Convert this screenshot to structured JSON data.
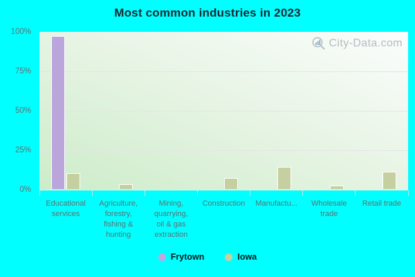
{
  "title": "Most common industries in 2023",
  "watermark": {
    "text": "City-Data.com"
  },
  "colors": {
    "background": "#00ffff",
    "frytown_bar": "#bba6db",
    "iowa_bar": "#c6cf9f",
    "bar_border": "#ffffff",
    "axis_label_text": "#5e7070",
    "title_text": "#1f2730",
    "gridline": "#e7e3e9",
    "watermark_text": "#b3bdc3"
  },
  "chart_data": {
    "type": "bar",
    "title": "Most common industries in 2023",
    "categories": [
      "Educational services",
      "Agriculture, forestry, fishing & hunting",
      "Mining, quarrying, oil & gas extraction",
      "Construction",
      "Manufactu...",
      "Wholesale trade",
      "Retail trade"
    ],
    "category_label_lines": [
      [
        "Educational",
        "services"
      ],
      [
        "Agriculture,",
        "forestry,",
        "fishing &",
        "hunting"
      ],
      [
        "Mining,",
        "quarrying,",
        "oil & gas",
        "extraction"
      ],
      [
        "Construction"
      ],
      [
        "Manufactu..."
      ],
      [
        "Wholesale",
        "trade"
      ],
      [
        "Retail trade"
      ]
    ],
    "series": [
      {
        "name": "Frytown",
        "color": "#bba6db",
        "values": [
          97,
          0,
          0,
          0,
          0,
          0,
          0
        ]
      },
      {
        "name": "Iowa",
        "color": "#c6cf9f",
        "values": [
          10,
          3,
          0,
          7,
          14,
          2,
          11
        ]
      }
    ],
    "y_ticks": [
      "0%",
      "25%",
      "50%",
      "75%",
      "100%"
    ],
    "y_tick_values": [
      0,
      25,
      50,
      75,
      100
    ],
    "gridline_values": [
      25,
      50,
      75
    ],
    "ylim": [
      0,
      100
    ],
    "grid": "horizontal",
    "legend_position": "bottom"
  },
  "legend": {
    "items": [
      {
        "label": "Frytown",
        "color": "#c0a8e0"
      },
      {
        "label": "Iowa",
        "color": "#c9cf9e"
      }
    ]
  }
}
